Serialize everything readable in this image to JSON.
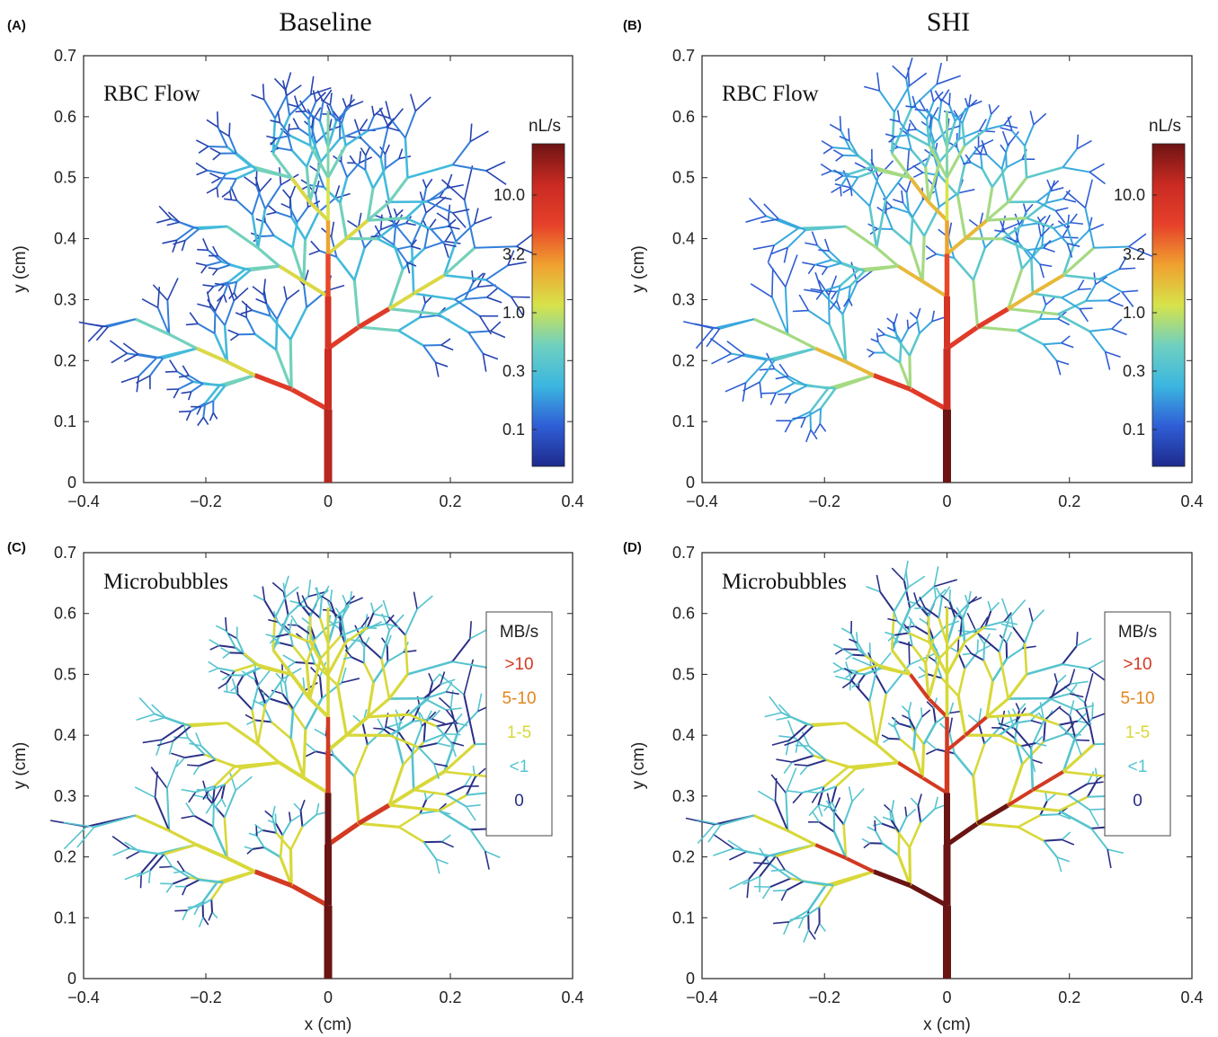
{
  "column_titles": [
    "Baseline",
    "SHI"
  ],
  "colors": {
    "flow_gradient": [
      "#1e2a8c",
      "#2f5ed6",
      "#3bb6e0",
      "#6fd0c0",
      "#d7e34a",
      "#f0a030",
      "#e6402a",
      "#c92a22",
      "#6e1414"
    ],
    "mb_categories": {
      "high": "#d23a22",
      "mid": "#e2861c",
      "low": "#d8d83a",
      "tiny": "#56c4cf",
      "zero": "#2a2f86",
      "very_high": "#6a1414"
    }
  },
  "chart_data": [
    {
      "type": "line",
      "panel_label": "(A)",
      "title": "RBC Flow",
      "ylabel": "y (cm)",
      "xlabel": "",
      "xlim": [
        -0.4,
        0.4
      ],
      "ylim": [
        0,
        0.7
      ],
      "xticks": [
        "−0.4",
        "−0.2",
        "0",
        "0.2",
        "0.4"
      ],
      "yticks": [
        "0",
        "0.1",
        "0.2",
        "0.3",
        "0.4",
        "0.5",
        "0.6",
        "0.7"
      ],
      "colorbar": {
        "unit": "nL/s",
        "ticks": [
          "10.0",
          "3.2",
          "1.0",
          "0.3",
          "0.1"
        ]
      }
    },
    {
      "type": "line",
      "panel_label": "(B)",
      "title": "RBC Flow",
      "ylabel": "y (cm)",
      "xlabel": "",
      "xlim": [
        -0.4,
        0.4
      ],
      "ylim": [
        0,
        0.7
      ],
      "xticks": [
        "−0.4",
        "−0.2",
        "0",
        "0.2",
        "0.4"
      ],
      "yticks": [
        "0",
        "0.1",
        "0.2",
        "0.3",
        "0.4",
        "0.5",
        "0.6",
        "0.7"
      ],
      "colorbar": {
        "unit": "nL/s",
        "ticks": [
          "10.0",
          "3.2",
          "1.0",
          "0.3",
          "0.1"
        ]
      }
    },
    {
      "type": "line",
      "panel_label": "(C)",
      "title": "Microbubbles",
      "ylabel": "y (cm)",
      "xlabel": "x (cm)",
      "xlim": [
        -0.4,
        0.4
      ],
      "ylim": [
        0,
        0.7
      ],
      "xticks": [
        "−0.4",
        "−0.2",
        "0",
        "0.2",
        "0.4"
      ],
      "yticks": [
        "0",
        "0.1",
        "0.2",
        "0.3",
        "0.4",
        "0.5",
        "0.6",
        "0.7"
      ],
      "legend": {
        "title": "MB/s",
        "entries": [
          ">10",
          "5-10",
          "1-5",
          "<1",
          "0"
        ],
        "placement": "right"
      }
    },
    {
      "type": "line",
      "panel_label": "(D)",
      "title": "Microbubbles",
      "ylabel": "y (cm)",
      "xlabel": "x (cm)",
      "xlim": [
        -0.4,
        0.4
      ],
      "ylim": [
        0,
        0.7
      ],
      "xticks": [
        "−0.4",
        "−0.2",
        "0",
        "0.2",
        "0.4"
      ],
      "yticks": [
        "0",
        "0.1",
        "0.2",
        "0.3",
        "0.4",
        "0.5",
        "0.6",
        "0.7"
      ],
      "legend": {
        "title": "MB/s",
        "entries": [
          ">10",
          "5-10",
          "1-5",
          "<1",
          "0"
        ],
        "placement": "right"
      }
    }
  ]
}
